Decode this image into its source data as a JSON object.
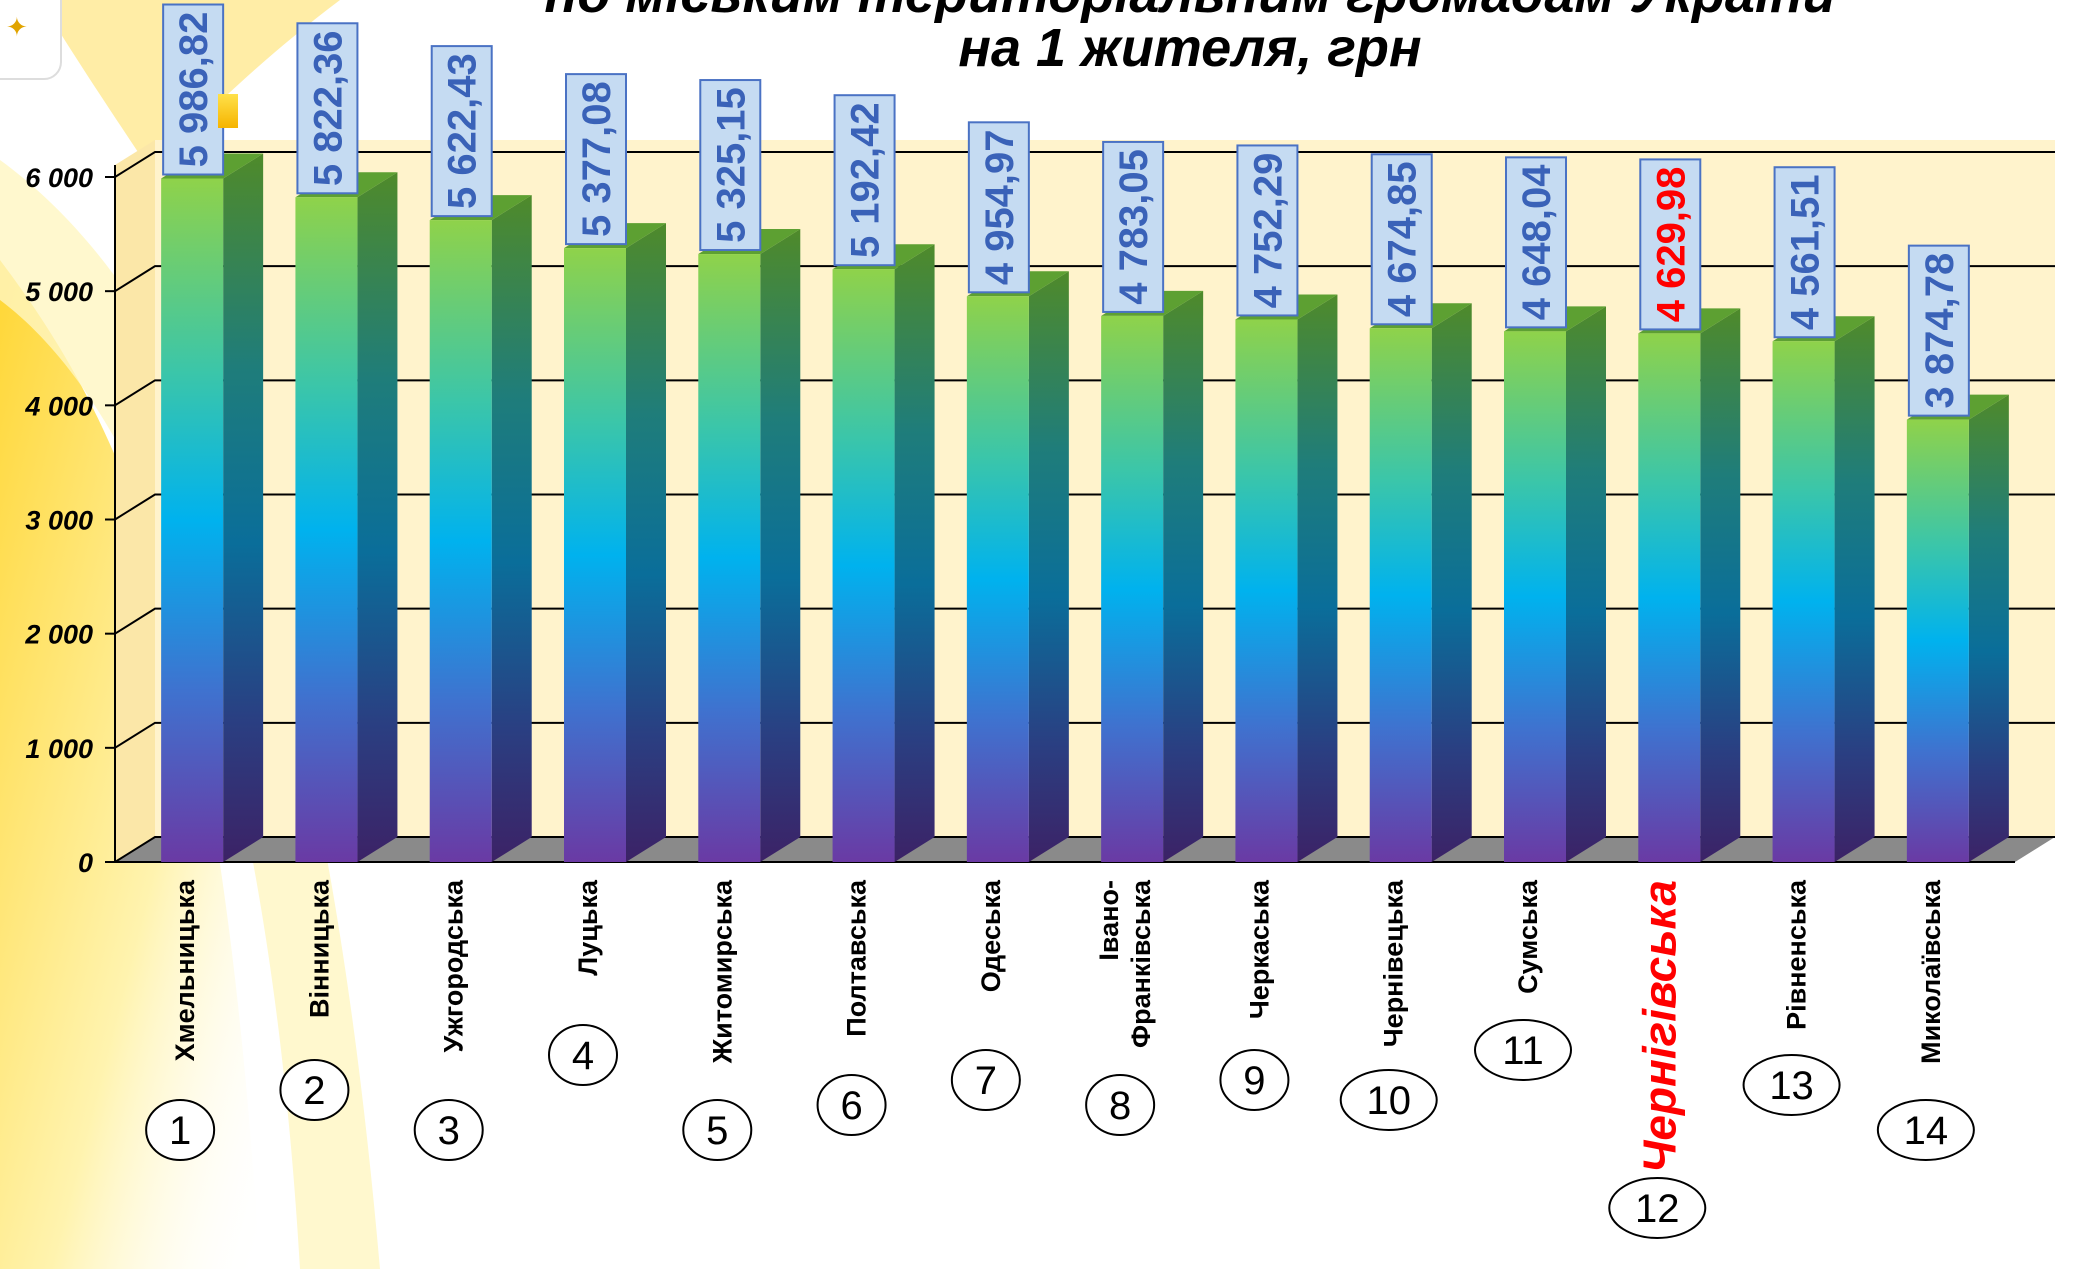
{
  "title": {
    "line1": "по міським територіальним громадам України",
    "line2": "на 1 жителя, грн"
  },
  "colors": {
    "plot_background": "#fff3cc",
    "floor": "#8a8a8a",
    "label_box": "#c5dbf2",
    "label_text": "#3a62b8",
    "highlight": "#ff0000",
    "bar_top": "#8fd24a",
    "bar_mid": "#00b2ee",
    "bar_bottom": "#6a3aa4"
  },
  "chart_data": {
    "type": "bar",
    "categories": [
      "Хмельницька",
      "Вінницька",
      "Ужгородська",
      "Луцька",
      "Житомирська",
      "Полтавська",
      "Одеська",
      "Івано-Франківська",
      "Черкаська",
      "Чернівецька",
      "Сумська",
      "Чернігівська",
      "Рівненська",
      "Миколаївська"
    ],
    "values": [
      5986.82,
      5822.36,
      5622.43,
      5377.08,
      5325.15,
      5192.42,
      4954.97,
      4783.05,
      4752.29,
      4674.85,
      4648.04,
      4629.98,
      4561.51,
      3874.78
    ],
    "value_labels": [
      "5 986,82",
      "5 822,36",
      "5 622,43",
      "5 377,08",
      "5 325,15",
      "5 192,42",
      "4 954,97",
      "4 783,05",
      "4 752,29",
      "4 674,85",
      "4 648,04",
      "4 629,98",
      "4 561,51",
      "3 874,78"
    ],
    "ranks": [
      "1",
      "2",
      "3",
      "4",
      "5",
      "6",
      "7",
      "8",
      "9",
      "10",
      "11",
      "12",
      "13",
      "14"
    ],
    "highlight_index": 11,
    "ylim": [
      0,
      6000
    ],
    "yticks": [
      0,
      1000,
      2000,
      3000,
      4000,
      5000,
      6000
    ],
    "ytick_labels": [
      "0",
      "1 000",
      "2 000",
      "3 000",
      "4 000",
      "5 000",
      "6 000"
    ],
    "grid": true,
    "style": "3d-column"
  }
}
